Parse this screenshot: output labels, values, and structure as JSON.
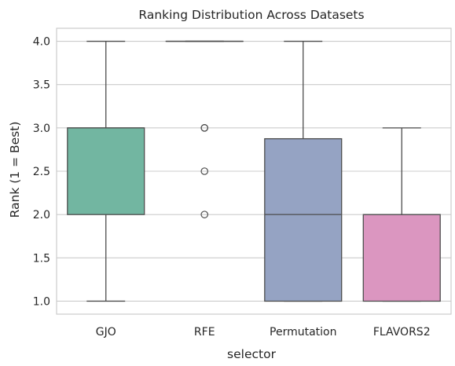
{
  "chart_data": {
    "type": "box",
    "title": "Ranking Distribution Across Datasets",
    "xlabel": "selector",
    "ylabel": "Rank (1 = Best)",
    "ylim": [
      0.85,
      4.15
    ],
    "yticks": [
      "1.0",
      "1.5",
      "2.0",
      "2.5",
      "3.0",
      "3.5",
      "4.0"
    ],
    "grid": "horizontal",
    "categories": [
      "GJO",
      "RFE",
      "Permutation",
      "FLAVORS2"
    ],
    "boxes": [
      {
        "name": "GJO",
        "color": "#72b6a1",
        "whisker_low": 1.0,
        "q1": 2.0,
        "median": 3.0,
        "q3": 3.0,
        "whisker_high": 4.0,
        "outliers": []
      },
      {
        "name": "RFE",
        "color": "#e99675",
        "whisker_low": 4.0,
        "q1": 4.0,
        "median": 4.0,
        "q3": 4.0,
        "whisker_high": 4.0,
        "outliers": [
          3.0,
          3.0,
          2.5,
          2.0
        ]
      },
      {
        "name": "Permutation",
        "color": "#95a3c3",
        "whisker_low": 1.0,
        "q1": 1.0,
        "median": 2.0,
        "q3": 2.875,
        "whisker_high": 4.0,
        "outliers": []
      },
      {
        "name": "FLAVORS2",
        "color": "#db96c0",
        "whisker_low": 1.0,
        "q1": 1.0,
        "median": 2.0,
        "q3": 2.0,
        "whisker_high": 3.0,
        "outliers": []
      }
    ]
  }
}
